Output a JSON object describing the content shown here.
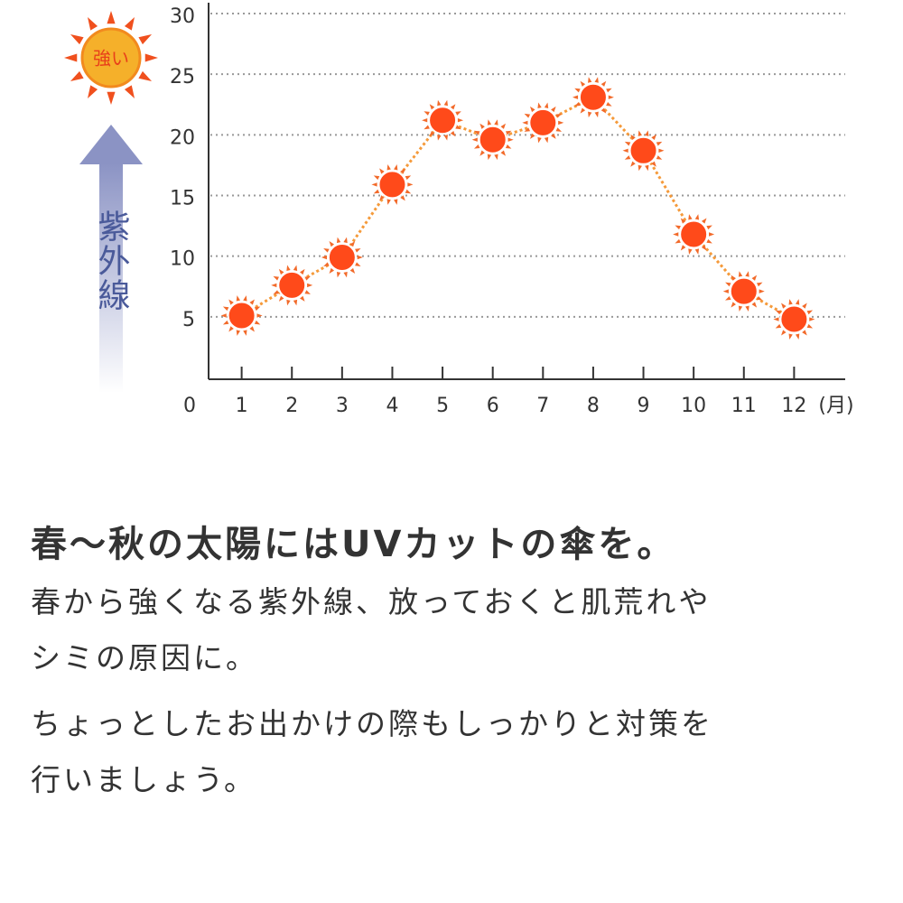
{
  "chart_data": {
    "type": "line",
    "badge": "強い",
    "y_label": "紫外線",
    "x_label": "(月)",
    "x": [
      1,
      2,
      3,
      4,
      5,
      6,
      7,
      8,
      9,
      10,
      11,
      12
    ],
    "series": [
      {
        "color": "#ff4a1a",
        "line_color": "#f59a3a",
        "values": [
          5.1,
          7.6,
          9.9,
          15.9,
          21.2,
          19.6,
          21,
          23.1,
          18.7,
          11.8,
          7.1,
          4.8
        ]
      }
    ],
    "xlim": [
      0,
      13
    ],
    "xticks": [
      0,
      1,
      2,
      3,
      4,
      5,
      6,
      7,
      8,
      9,
      10,
      11,
      12
    ],
    "ylim": [
      0,
      30
    ],
    "yticks": [
      5,
      10,
      15,
      20,
      25,
      30
    ],
    "grid": true
  },
  "caption": {
    "heading": "春〜秋の太陽にはUVカットの傘を。",
    "lines": [
      "春から強くなる紫外線、放っておくと肌荒れや",
      "シミの原因に。",
      "ちょっとしたお出かけの際もしっかりと対策を",
      "行いましょう。"
    ]
  }
}
